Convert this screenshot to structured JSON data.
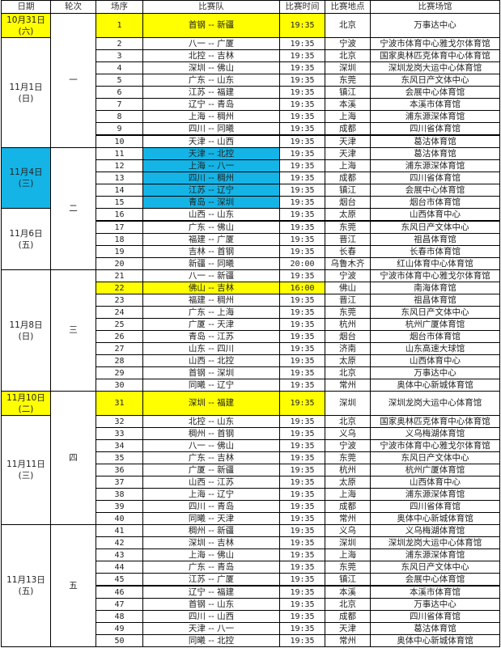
{
  "header": {
    "date": "日期",
    "round": "轮次",
    "seq": "场序",
    "teams": "比赛队",
    "time": "比赛时间",
    "city": "比赛地点",
    "venue": "比赛场馆"
  },
  "colors": {
    "yellow_highlight": "#ffff00",
    "blue_highlight": "#14b4e6"
  },
  "rounds": [
    {
      "label": "一",
      "dates": [
        {
          "date": "10月31日",
          "weekday": "(六)",
          "highlight": "yellow",
          "games": [
            {
              "no": "1",
              "teams": "首钢 -- 新疆",
              "time": "19:35",
              "city": "北京",
              "venue": "万事达中心",
              "highlight": "yellow"
            }
          ]
        },
        {
          "date": "11月1日",
          "weekday": "(日)",
          "games": [
            {
              "no": "2",
              "teams": "八一 -- 广厦",
              "time": "19:35",
              "city": "宁波",
              "venue": "宁波市体育中心雅戈尔体育馆"
            },
            {
              "no": "3",
              "teams": "北控 -- 吉林",
              "time": "19:35",
              "city": "北京",
              "venue": "国家奥林匹克体育中心体育馆"
            },
            {
              "no": "4",
              "teams": "深圳 -- 佛山",
              "time": "19:35",
              "city": "深圳",
              "venue": "深圳龙岗大运中心体育馆"
            },
            {
              "no": "5",
              "teams": "广东 -- 山东",
              "time": "19:35",
              "city": "东莞",
              "venue": "东风日产文体中心"
            },
            {
              "no": "6",
              "teams": "江苏 -- 福建",
              "time": "19:35",
              "city": "镇江",
              "venue": "会展中心体育馆"
            },
            {
              "no": "7",
              "teams": "辽宁 -- 青岛",
              "time": "19:35",
              "city": "本溪",
              "venue": "本溪市体育馆"
            },
            {
              "no": "8",
              "teams": "上海 -- 稠州",
              "time": "19:35",
              "city": "上海",
              "venue": "浦东源深体育馆"
            },
            {
              "no": "9",
              "teams": "四川 -- 同曦",
              "time": "19:35",
              "city": "成都",
              "venue": "四川省体育馆"
            },
            {
              "no": "10",
              "teams": "天津 -- 山西",
              "time": "19:35",
              "city": "天津",
              "venue": "葛沽体育馆",
              "thick": true
            }
          ]
        }
      ]
    },
    {
      "label": "二",
      "dates": [
        {
          "date": "11月4日",
          "weekday": "(三)",
          "highlight": "blue",
          "games": [
            {
              "no": "11",
              "teams": "天津 -- 北控",
              "time": "19:35",
              "city": "天津",
              "venue": "葛沽体育馆",
              "teams_highlight": "blue"
            },
            {
              "no": "12",
              "teams": "上海 -- 八一",
              "time": "19:35",
              "city": "上海",
              "venue": "浦东源深体育馆",
              "teams_highlight": "blue"
            },
            {
              "no": "13",
              "teams": "四川 -- 稠州",
              "time": "19:35",
              "city": "成都",
              "venue": "四川省体育馆",
              "teams_highlight": "blue"
            },
            {
              "no": "14",
              "teams": "江苏 -- 辽宁",
              "time": "19:35",
              "city": "镇江",
              "venue": "会展中心体育馆",
              "teams_highlight": "blue"
            },
            {
              "no": "15",
              "teams": "青岛 -- 深圳",
              "time": "19:35",
              "city": "烟台",
              "venue": "烟台市体育馆",
              "teams_highlight": "blue"
            }
          ]
        },
        {
          "date": "11月6日",
          "weekday": "(五)",
          "games": [
            {
              "no": "16",
              "teams": "山西 -- 山东",
              "time": "19:35",
              "city": "太原",
              "venue": "山西体育中心"
            },
            {
              "no": "17",
              "teams": "广东 -- 佛山",
              "time": "19:35",
              "city": "东莞",
              "venue": "东风日产文体中心",
              "thick": true
            },
            {
              "no": "18",
              "teams": "福建 -- 广厦",
              "time": "19:35",
              "city": "晋江",
              "venue": "祖昌体育馆"
            },
            {
              "no": "19",
              "teams": "吉林 -- 首钢",
              "time": "19:35",
              "city": "长春",
              "venue": "长春市体育馆"
            },
            {
              "no": "20",
              "teams": "新疆 -- 同曦",
              "time": "20:00",
              "city": "乌鲁木齐",
              "venue": "红山体育中心体育馆"
            }
          ]
        }
      ]
    },
    {
      "label": "三",
      "dates": [
        {
          "date": "11月8日",
          "weekday": "(日)",
          "games": [
            {
              "no": "21",
              "teams": "八一 -- 新疆",
              "time": "19:35",
              "city": "宁波",
              "venue": "宁波市体育中心雅戈尔体育馆"
            },
            {
              "no": "22",
              "teams": "佛山 -- 吉林",
              "time": "16:00",
              "city": "佛山",
              "venue": "南海体育馆",
              "highlight": "yellow"
            },
            {
              "no": "23",
              "teams": "福建 -- 稠州",
              "time": "19:35",
              "city": "晋江",
              "venue": "祖昌体育馆"
            },
            {
              "no": "24",
              "teams": "广东 -- 上海",
              "time": "19:35",
              "city": "东莞",
              "venue": "东风日产文体中心"
            },
            {
              "no": "25",
              "teams": "广厦 -- 天津",
              "time": "19:35",
              "city": "杭州",
              "venue": "杭州广厦体育馆"
            },
            {
              "no": "26",
              "teams": "青岛 -- 江苏",
              "time": "19:35",
              "city": "烟台",
              "venue": "烟台市体育馆"
            },
            {
              "no": "27",
              "teams": "山东 -- 四川",
              "time": "19:35",
              "city": "济南",
              "venue": "山东高速大球馆"
            },
            {
              "no": "28",
              "teams": "山西 -- 北控",
              "time": "19:35",
              "city": "太原",
              "venue": "山西体育中心"
            },
            {
              "no": "29",
              "teams": "首钢 -- 深圳",
              "time": "19:35",
              "city": "北京",
              "venue": "万事达中心"
            },
            {
              "no": "30",
              "teams": "同曦 -- 辽宁",
              "time": "19:35",
              "city": "常州",
              "venue": "奥体中心新城体育馆"
            }
          ]
        }
      ]
    },
    {
      "label": "四",
      "dates": [
        {
          "date": "11月10日",
          "weekday": "(二)",
          "highlight": "yellow",
          "games": [
            {
              "no": "31",
              "teams": "深圳 -- 福建",
              "time": "19:35",
              "city": "深圳",
              "venue": "深圳龙岗大运中心体育馆",
              "highlight": "yellow"
            }
          ]
        },
        {
          "date": "11月11日",
          "weekday": "(三)",
          "games": [
            {
              "no": "32",
              "teams": "北控 -- 山东",
              "time": "19:35",
              "city": "北京",
              "venue": "国家奥林匹克体育中心体育馆"
            },
            {
              "no": "33",
              "teams": "稠州 -- 首钢",
              "time": "19:35",
              "city": "义乌",
              "venue": "义乌梅湖体育馆"
            },
            {
              "no": "34",
              "teams": "八一 -- 佛山",
              "time": "19:35",
              "city": "宁波",
              "venue": "宁波市体育中心雅戈尔体育馆"
            },
            {
              "no": "35",
              "teams": "广东 -- 吉林",
              "time": "19:35",
              "city": "东莞",
              "venue": "东风日产文体中心"
            },
            {
              "no": "36",
              "teams": "广厦 -- 新疆",
              "time": "19:35",
              "city": "杭州",
              "venue": "杭州广厦体育馆"
            },
            {
              "no": "37",
              "teams": "山西 -- 江苏",
              "time": "19:35",
              "city": "太原",
              "venue": "山西体育中心"
            },
            {
              "no": "38",
              "teams": "上海 -- 辽宁",
              "time": "19:35",
              "city": "上海",
              "venue": "浦东源深体育馆"
            },
            {
              "no": "39",
              "teams": "四川 -- 青岛",
              "time": "19:35",
              "city": "成都",
              "venue": "四川省体育馆"
            },
            {
              "no": "40",
              "teams": "同曦 -- 天津",
              "time": "19:35",
              "city": "常州",
              "venue": "奥体中心新城体育馆"
            }
          ]
        }
      ]
    },
    {
      "label": "五",
      "dates": [
        {
          "date": "11月13日",
          "weekday": "(五)",
          "games": [
            {
              "no": "41",
              "teams": "稠州 -- 新疆",
              "time": "19:35",
              "city": "义乌",
              "venue": "义乌梅湖体育馆"
            },
            {
              "no": "42",
              "teams": "深圳 -- 吉林",
              "time": "19:35",
              "city": "深圳",
              "venue": "深圳龙岗大运中心体育馆"
            },
            {
              "no": "43",
              "teams": "上海 -- 佛山",
              "time": "19:35",
              "city": "上海",
              "venue": "浦东源深体育馆"
            },
            {
              "no": "44",
              "teams": "广东 -- 青岛",
              "time": "19:35",
              "city": "东莞",
              "venue": "东风日产文体中心"
            },
            {
              "no": "45",
              "teams": "江苏 -- 广厦",
              "time": "19:35",
              "city": "镇江",
              "venue": "会展中心体育馆"
            },
            {
              "no": "46",
              "teams": "辽宁 -- 福建",
              "time": "19:35",
              "city": "本溪",
              "venue": "本溪市体育馆",
              "thick": true
            },
            {
              "no": "47",
              "teams": "首钢 -- 山东",
              "time": "19:35",
              "city": "北京",
              "venue": "万事达中心"
            },
            {
              "no": "48",
              "teams": "四川 -- 山西",
              "time": "19:35",
              "city": "成都",
              "venue": "四川省体育馆"
            },
            {
              "no": "49",
              "teams": "天津 -- 八一",
              "time": "19:35",
              "city": "天津",
              "venue": "葛沽体育馆"
            },
            {
              "no": "50",
              "teams": "同曦 -- 北控",
              "time": "19:35",
              "city": "常州",
              "venue": "奥体中心新城体育馆"
            }
          ]
        }
      ]
    }
  ]
}
